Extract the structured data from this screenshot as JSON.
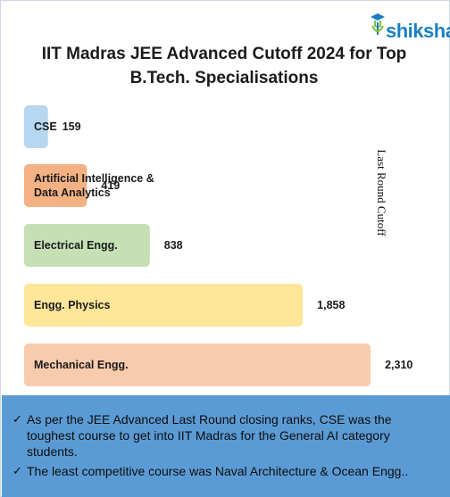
{
  "brand": {
    "name": "shiksha"
  },
  "chart_data": {
    "type": "bar",
    "orientation": "horizontal",
    "title": "IIT Madras JEE Advanced Cutoff 2024 for Top B.Tech. Specialisations",
    "ylabel": "Last Round Cutoff",
    "categories": [
      "CSE",
      "Artificial Intelligence & Data Analytics",
      "Electrical Engg.",
      "Engg. Physics",
      "Mechanical Engg."
    ],
    "values": [
      159,
      419,
      838,
      1858,
      2310
    ],
    "value_labels": [
      "159",
      "419",
      "838",
      "1,858",
      "2,310"
    ],
    "colors": [
      "#b7d6f0",
      "#f4b183",
      "#c5e0b4",
      "#ffe699",
      "#f8cbad"
    ],
    "xlim": [
      0,
      2500
    ],
    "grid": false
  },
  "notes": [
    "As per the JEE Advanced Last Round closing ranks, CSE was the toughest course to get into IIT Madras for the General AI category students.",
    "The least competitive course was Naval Architecture & Ocean Engg.."
  ],
  "colors": {
    "footer_bg": "#5b9bd5",
    "brand": "#1a7fc1",
    "accent": "#7dc242"
  }
}
